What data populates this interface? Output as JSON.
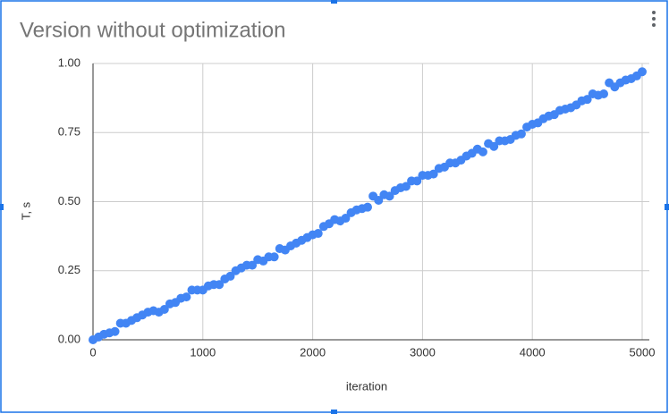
{
  "chart_data": {
    "type": "scatter",
    "title": "Version without optimization",
    "x_label": "iteration",
    "y_label": "T, s",
    "color": "#4285f4",
    "grid": true,
    "xlim": [
      0,
      5000
    ],
    "ylim": [
      0,
      1
    ],
    "xticks": [
      0,
      1000,
      2000,
      3000,
      4000,
      5000
    ],
    "yticks": [
      {
        "value": 0,
        "label": "0.00"
      },
      {
        "value": 0.25,
        "label": "0.25"
      },
      {
        "value": 0.5,
        "label": "0.50"
      },
      {
        "value": 0.75,
        "label": "0.75"
      },
      {
        "value": 1,
        "label": "1.00"
      }
    ],
    "x": [
      0,
      50,
      100,
      150,
      200,
      250,
      300,
      350,
      400,
      450,
      500,
      550,
      600,
      650,
      700,
      750,
      800,
      850,
      900,
      950,
      1000,
      1050,
      1100,
      1150,
      1200,
      1250,
      1300,
      1350,
      1400,
      1450,
      1500,
      1550,
      1600,
      1650,
      1700,
      1750,
      1800,
      1850,
      1900,
      1950,
      2000,
      2050,
      2100,
      2150,
      2200,
      2250,
      2300,
      2350,
      2400,
      2450,
      2500,
      2550,
      2600,
      2650,
      2700,
      2750,
      2800,
      2850,
      2900,
      2950,
      3000,
      3050,
      3100,
      3150,
      3200,
      3250,
      3300,
      3350,
      3400,
      3450,
      3500,
      3550,
      3600,
      3650,
      3700,
      3750,
      3800,
      3850,
      3900,
      3950,
      4000,
      4050,
      4100,
      4150,
      4200,
      4250,
      4300,
      4350,
      4400,
      4450,
      4500,
      4550,
      4600,
      4650,
      4700,
      4750,
      4800,
      4850,
      4900,
      4950,
      5000
    ],
    "values": [
      0,
      0.01,
      0.02,
      0.025,
      0.03,
      0.06,
      0.06,
      0.07,
      0.08,
      0.09,
      0.1,
      0.105,
      0.1,
      0.11,
      0.13,
      0.135,
      0.15,
      0.155,
      0.18,
      0.18,
      0.18,
      0.195,
      0.2,
      0.2,
      0.22,
      0.23,
      0.25,
      0.26,
      0.27,
      0.27,
      0.29,
      0.285,
      0.3,
      0.3,
      0.33,
      0.325,
      0.34,
      0.35,
      0.36,
      0.37,
      0.38,
      0.385,
      0.41,
      0.42,
      0.435,
      0.43,
      0.44,
      0.46,
      0.47,
      0.475,
      0.48,
      0.52,
      0.505,
      0.525,
      0.52,
      0.54,
      0.55,
      0.555,
      0.575,
      0.575,
      0.595,
      0.595,
      0.6,
      0.62,
      0.625,
      0.64,
      0.64,
      0.65,
      0.665,
      0.675,
      0.69,
      0.68,
      0.71,
      0.7,
      0.72,
      0.72,
      0.725,
      0.74,
      0.745,
      0.77,
      0.78,
      0.785,
      0.8,
      0.81,
      0.815,
      0.83,
      0.835,
      0.84,
      0.85,
      0.865,
      0.87,
      0.89,
      0.885,
      0.89,
      0.93,
      0.915,
      0.93,
      0.94,
      0.945,
      0.955,
      0.97
    ]
  }
}
